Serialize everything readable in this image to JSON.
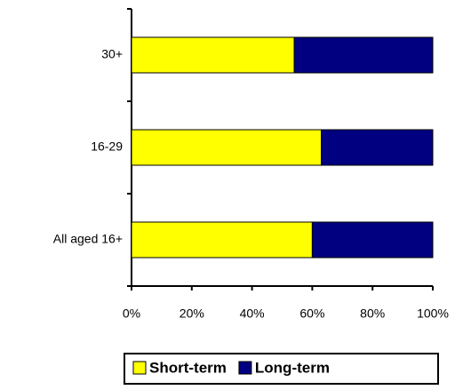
{
  "chart_data": {
    "type": "stacked-bar-horizontal",
    "categories": [
      "30+",
      "16-29",
      "All aged 16+"
    ],
    "series": [
      {
        "name": "Short-term",
        "color": "#ffff00",
        "values": [
          54,
          63,
          60
        ]
      },
      {
        "name": "Long-term",
        "color": "#000080",
        "values": [
          46,
          37,
          40
        ]
      }
    ],
    "xlim": [
      0,
      100
    ],
    "xticks": [
      {
        "value": 0,
        "label": "0%"
      },
      {
        "value": 20,
        "label": "20%"
      },
      {
        "value": 40,
        "label": "40%"
      },
      {
        "value": 60,
        "label": "60%"
      },
      {
        "value": 80,
        "label": "80%"
      },
      {
        "value": 100,
        "label": "100%"
      }
    ],
    "legend": "bottom"
  }
}
